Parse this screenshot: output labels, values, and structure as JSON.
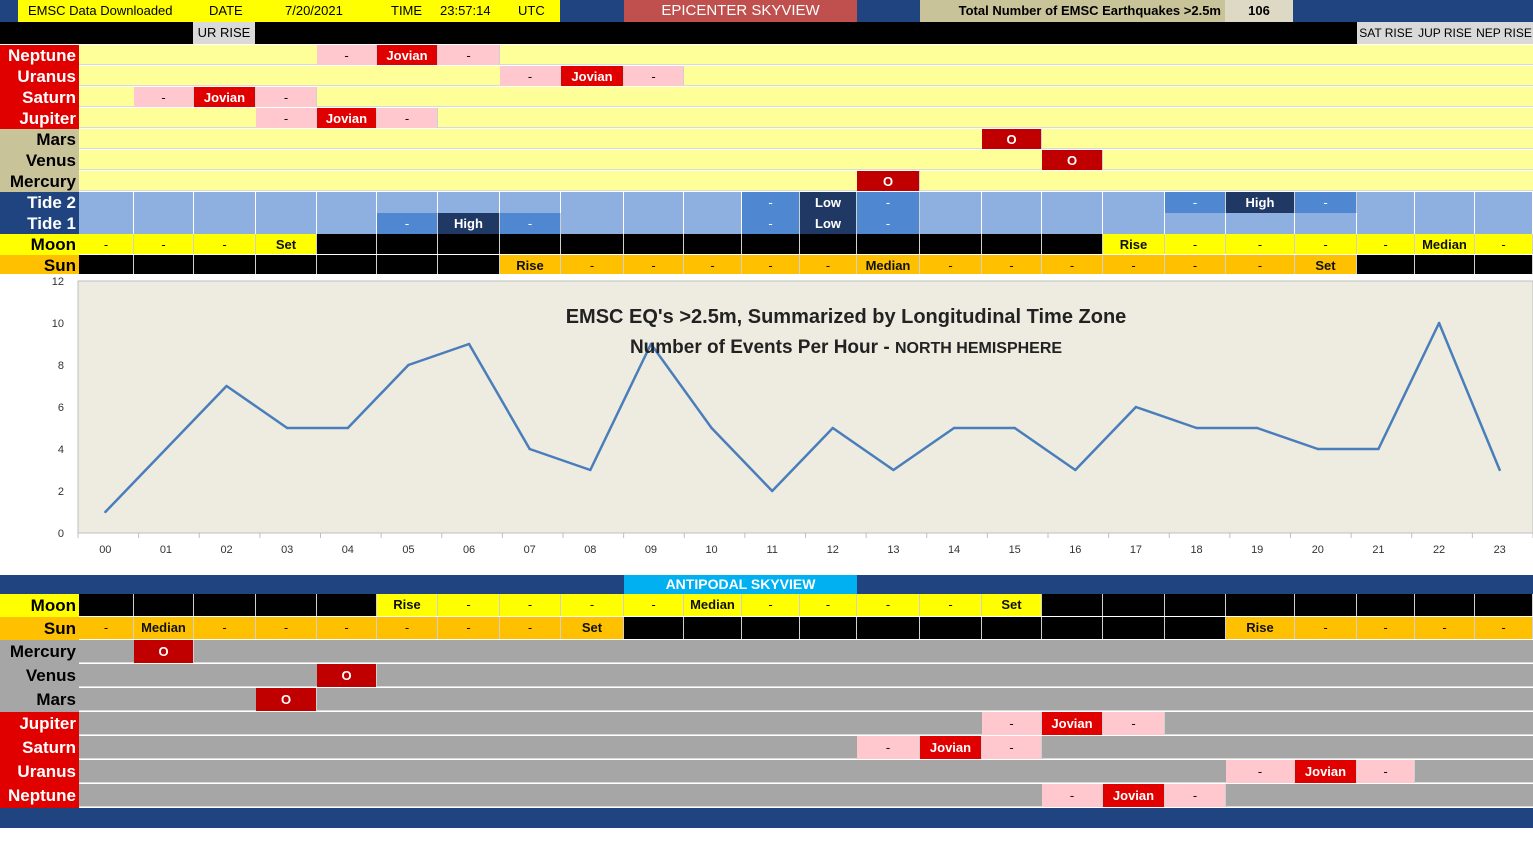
{
  "header": {
    "downloaded_label": "EMSC Data Downloaded",
    "date_label": "DATE",
    "date_value": "7/20/2021",
    "time_label": "TIME",
    "time_value": "23:57:14",
    "tz": "UTC",
    "title": "EPICENTER SKYVIEW",
    "total_label": "Total Number of EMSC Earthquakes >2.5m",
    "total_value": "106"
  },
  "rise_labels": {
    "ur_rise": "UR RISE",
    "sat_rise": "SAT RISE",
    "jup_rise": "JUP RISE",
    "nep_rise": "NEP RISE"
  },
  "epicenter_rows": [
    {
      "label": "Neptune",
      "style": "red",
      "bg": "y",
      "cells": [
        [
          4,
          "-",
          "pink"
        ],
        [
          5,
          "Jovian",
          "red"
        ],
        [
          6,
          "-",
          "pink"
        ]
      ]
    },
    {
      "label": "Uranus",
      "style": "red",
      "bg": "y",
      "cells": [
        [
          7,
          "-",
          "pink"
        ],
        [
          8,
          "Jovian",
          "red"
        ],
        [
          9,
          "-",
          "pink"
        ]
      ]
    },
    {
      "label": "Saturn",
      "style": "red",
      "bg": "y",
      "cells": [
        [
          1,
          "-",
          "pink"
        ],
        [
          2,
          "Jovian",
          "red"
        ],
        [
          3,
          "-",
          "pink"
        ]
      ]
    },
    {
      "label": "Jupiter",
      "style": "red",
      "bg": "y",
      "cells": [
        [
          3,
          "-",
          "pink"
        ],
        [
          4,
          "Jovian",
          "red"
        ],
        [
          5,
          "-",
          "pink"
        ]
      ]
    },
    {
      "label": "Mars",
      "style": "tan",
      "bg": "y",
      "cells": [
        [
          15,
          "O",
          "dred"
        ]
      ]
    },
    {
      "label": "Venus",
      "style": "tan",
      "bg": "y",
      "cells": [
        [
          16,
          "O",
          "dred"
        ]
      ]
    },
    {
      "label": "Mercury",
      "style": "tan",
      "bg": "y",
      "cells": [
        [
          13,
          "O",
          "dred"
        ]
      ]
    }
  ],
  "tides": {
    "tide2_label": "Tide 2",
    "tide1_label": "Tide 1",
    "tide2": [
      [
        11,
        "-",
        "mb"
      ],
      [
        12,
        "Low",
        "db"
      ],
      [
        13,
        "-",
        "mb"
      ],
      [
        18,
        "-",
        "mb"
      ],
      [
        19,
        "High",
        "db"
      ],
      [
        20,
        "-",
        "mb"
      ]
    ],
    "tide1": [
      [
        5,
        "-",
        "mb"
      ],
      [
        6,
        "High",
        "db"
      ],
      [
        7,
        "-",
        "mb"
      ],
      [
        11,
        "-",
        "mb"
      ],
      [
        12,
        "Low",
        "db"
      ],
      [
        13,
        "-",
        "mb"
      ]
    ]
  },
  "epicenter_moon": {
    "label": "Moon",
    "cells": [
      "-",
      "-",
      "-",
      "Set",
      "",
      "",
      "",
      "",
      "",
      "",
      "",
      "",
      "",
      "",
      "",
      "",
      "",
      "Rise",
      "-",
      "-",
      "-",
      "-",
      "Median",
      "-"
    ],
    "fill": [
      "yel",
      "yel",
      "yel",
      "yel",
      "blk",
      "blk",
      "blk",
      "blk",
      "blk",
      "blk",
      "blk",
      "blk",
      "blk",
      "blk",
      "blk",
      "blk",
      "blk",
      "yel",
      "yel",
      "yel",
      "yel",
      "yel",
      "yel",
      "yel"
    ]
  },
  "epicenter_sun": {
    "label": "Sun",
    "cells": [
      "",
      "",
      "",
      "",
      "",
      "",
      "",
      "Rise",
      "-",
      "-",
      "-",
      "-",
      "-",
      "Median",
      "-",
      "-",
      "-",
      "-",
      "-",
      "-",
      "Set",
      "",
      "",
      ""
    ],
    "fill": [
      "blk",
      "blk",
      "blk",
      "blk",
      "blk",
      "blk",
      "blk",
      "orange",
      "orange",
      "orange",
      "orange",
      "orange",
      "orange",
      "orange",
      "orange",
      "orange",
      "orange",
      "orange",
      "orange",
      "orange",
      "orange",
      "blk",
      "blk",
      "blk"
    ]
  },
  "chart_data": {
    "type": "line",
    "title": "EMSC EQ's >2.5m, Summarized by Longitudinal Time Zone",
    "subtitle_main": "Number of Events Per Hour - ",
    "subtitle_suffix": "NORTH  HEMISPHERE",
    "categories": [
      "00",
      "01",
      "02",
      "03",
      "04",
      "05",
      "06",
      "07",
      "08",
      "09",
      "10",
      "11",
      "12",
      "13",
      "14",
      "15",
      "16",
      "17",
      "18",
      "19",
      "20",
      "21",
      "22",
      "23"
    ],
    "values": [
      1,
      4,
      7,
      5,
      5,
      8,
      9,
      4,
      3,
      9,
      5,
      2,
      5,
      3,
      5,
      5,
      3,
      6,
      5,
      5,
      4,
      4,
      10,
      3
    ],
    "ylim": [
      0,
      12
    ],
    "yticks": [
      "0",
      "2",
      "4",
      "6",
      "8",
      "10",
      "12"
    ],
    "color": "#4a7ebb",
    "plot_bg": "#eeece1"
  },
  "antipodal": {
    "title": "ANTIPODAL SKYVIEW",
    "moon": {
      "label": "Moon",
      "cells": [
        "",
        "",
        "",
        "",
        "",
        "Rise",
        "-",
        "-",
        "-",
        "-",
        "Median",
        "-",
        "-",
        "-",
        "-",
        "Set",
        "",
        "",
        "",
        "",
        "",
        "",
        "",
        ""
      ],
      "fill": [
        "blk",
        "blk",
        "blk",
        "blk",
        "blk",
        "yel",
        "yel",
        "yel",
        "yel",
        "yel",
        "yel",
        "yel",
        "yel",
        "yel",
        "yel",
        "yel",
        "blk",
        "blk",
        "blk",
        "blk",
        "blk",
        "blk",
        "blk",
        "blk"
      ]
    },
    "sun": {
      "label": "Sun",
      "cells": [
        "-",
        "Median",
        "-",
        "-",
        "-",
        "-",
        "-",
        "-",
        "Set",
        "",
        "",
        "",
        "",
        "",
        "",
        "",
        "",
        "",
        "",
        "Rise",
        "-",
        "-",
        "-",
        "-"
      ],
      "fill": [
        "orange",
        "orange",
        "orange",
        "orange",
        "orange",
        "orange",
        "orange",
        "orange",
        "orange",
        "blk",
        "blk",
        "blk",
        "blk",
        "blk",
        "blk",
        "blk",
        "blk",
        "blk",
        "blk",
        "orange",
        "orange",
        "orange",
        "orange",
        "orange"
      ]
    },
    "rows": [
      {
        "label": "Mercury",
        "style": "gray",
        "cells": [
          [
            1,
            "O",
            "dred"
          ]
        ]
      },
      {
        "label": "Venus",
        "style": "gray",
        "cells": [
          [
            4,
            "O",
            "dred"
          ]
        ]
      },
      {
        "label": "Mars",
        "style": "gray",
        "cells": [
          [
            3,
            "O",
            "dred"
          ]
        ]
      },
      {
        "label": "Jupiter",
        "style": "red",
        "cells": [
          [
            15,
            "-",
            "pink"
          ],
          [
            16,
            "Jovian",
            "red"
          ],
          [
            17,
            "-",
            "pink"
          ]
        ]
      },
      {
        "label": "Saturn",
        "style": "red",
        "cells": [
          [
            13,
            "-",
            "pink"
          ],
          [
            14,
            "Jovian",
            "red"
          ],
          [
            15,
            "-",
            "pink"
          ]
        ]
      },
      {
        "label": "Uranus",
        "style": "red",
        "cells": [
          [
            19,
            "-",
            "pink"
          ],
          [
            20,
            "Jovian",
            "red"
          ],
          [
            21,
            "-",
            "pink"
          ]
        ]
      },
      {
        "label": "Neptune",
        "style": "red",
        "cells": [
          [
            16,
            "-",
            "pink"
          ],
          [
            17,
            "Jovian",
            "red"
          ],
          [
            18,
            "-",
            "pink"
          ]
        ]
      }
    ]
  }
}
